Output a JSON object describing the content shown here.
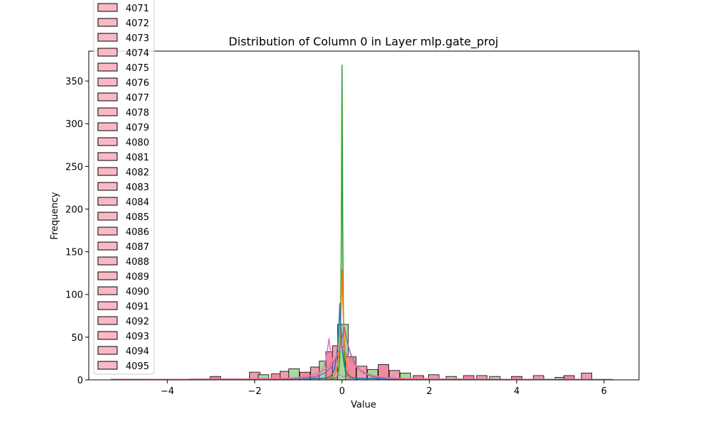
{
  "chart_data": {
    "type": "bar",
    "title": "Distribution of Column 0 in Layer mlp.gate_proj",
    "xlabel": "Value",
    "ylabel": "Frequency",
    "xlim": [
      -5.8,
      6.8
    ],
    "ylim": [
      0,
      385
    ],
    "xticks": [
      -4,
      -2,
      0,
      2,
      4,
      6
    ],
    "yticks": [
      0,
      50,
      100,
      150,
      200,
      250,
      300,
      350
    ],
    "grid": false,
    "legend_placement": "upper-left (overflowing above plot)",
    "legend_entries": [
      "4071",
      "4072",
      "4073",
      "4074",
      "4075",
      "4076",
      "4077",
      "4078",
      "4079",
      "4080",
      "4081",
      "4082",
      "4083",
      "4084",
      "4085",
      "4086",
      "4087",
      "4088",
      "4089",
      "4090",
      "4091",
      "4092",
      "4093",
      "4094",
      "4095"
    ],
    "legend_fill": "#f8b8c4",
    "series": [
      {
        "histogram": true,
        "bin_width": 0.24,
        "bins": [
          [
            -2.9,
            4
          ],
          [
            -2.0,
            9
          ],
          [
            -1.8,
            6
          ],
          [
            -1.5,
            7
          ],
          [
            -1.3,
            10
          ],
          [
            -1.1,
            13
          ],
          [
            -0.85,
            9
          ],
          [
            -0.6,
            15
          ],
          [
            -0.4,
            22
          ],
          [
            -0.25,
            33
          ],
          [
            -0.1,
            40
          ],
          [
            0.02,
            65
          ],
          [
            0.2,
            27
          ],
          [
            0.45,
            16
          ],
          [
            0.7,
            12
          ],
          [
            0.95,
            18
          ],
          [
            1.2,
            11
          ],
          [
            1.45,
            8
          ],
          [
            1.75,
            5
          ],
          [
            2.1,
            6
          ],
          [
            2.5,
            4
          ],
          [
            2.9,
            5
          ],
          [
            3.2,
            5
          ],
          [
            3.5,
            4
          ],
          [
            4.0,
            4
          ],
          [
            4.5,
            5
          ],
          [
            5.0,
            3
          ],
          [
            5.2,
            5
          ],
          [
            5.6,
            8
          ]
        ]
      }
    ],
    "kde_curves": [
      {
        "color": "#2ca02c",
        "peak": 367,
        "center": 0.0,
        "width": 0.02
      },
      {
        "color": "#e377c2",
        "peak": 47,
        "center": -0.3,
        "width": 0.1
      },
      {
        "color": "#ff7f0e",
        "peak": 128,
        "center": 0.0,
        "width": 0.05
      },
      {
        "color": "#1f77b4",
        "peak": 88,
        "center": -0.05,
        "width": 0.06
      },
      {
        "color": "#9467bd",
        "peak": 60,
        "center": 0.05,
        "width": 0.2
      },
      {
        "color": "#f77189",
        "peak": 40,
        "center": 0.0,
        "width": 0.3
      }
    ]
  }
}
